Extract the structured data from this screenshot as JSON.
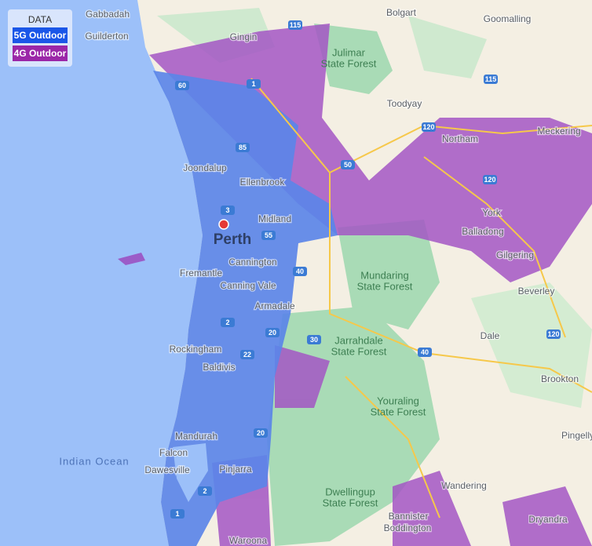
{
  "legend": {
    "title": "DATA",
    "items": [
      "5G Outdoor",
      "4G Outdoor"
    ]
  },
  "places": [
    "Gabbadah",
    "Guilderton",
    "Gingin",
    "Bolgart",
    "Goomalling",
    "Toodyay",
    "Northam",
    "Meckering",
    "Joondalup",
    "Ellenbrook",
    "Midland",
    "York",
    "Balladong",
    "Cannington",
    "Gilgering",
    "Fremantle",
    "Canning Vale",
    "Beverley",
    "Armadale",
    "Rockingham",
    "Dale",
    "Baldivis",
    "Brookton",
    "Pingelly",
    "Mandurah",
    "Falcon",
    "Dawesville",
    "Pinjarra",
    "Wandering",
    "Bannister",
    "Boddington",
    "Dryandra",
    "Waroona"
  ],
  "city": "Perth",
  "water": "Indian Ocean",
  "forests": [
    [
      "Julimar",
      "State Forest"
    ],
    [
      "Mundaring",
      "State Forest"
    ],
    [
      "Jarrahdale",
      "State Forest"
    ],
    [
      "Youraling",
      "State Forest"
    ],
    [
      "Dwellingup",
      "State Forest"
    ]
  ],
  "roads": [
    "115",
    "60",
    "1",
    "85",
    "3",
    "55",
    "120",
    "50",
    "115",
    "120",
    "20",
    "40",
    "30",
    "2",
    "22",
    "20",
    "120",
    "1",
    "2",
    "40"
  ]
}
